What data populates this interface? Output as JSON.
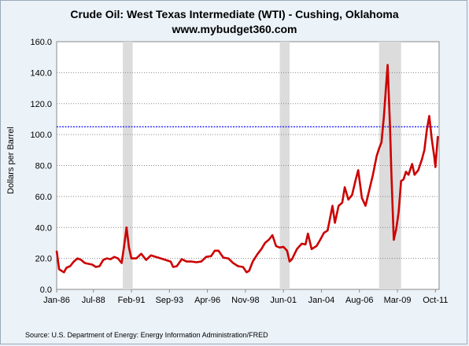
{
  "chart_data": {
    "type": "line",
    "title": "Crude Oil: West Texas Intermediate (WTI) - Cushing, Oklahoma",
    "subtitle": "www.mybudget360.com",
    "ylabel": "Dollars per Barrel",
    "xlabel": "",
    "source": "Source: U.S. Department of Energy: Energy Information Administration/FRED",
    "ylim": [
      0,
      160
    ],
    "yticks": [
      "0.0",
      "20.0",
      "40.0",
      "60.0",
      "80.0",
      "100.0",
      "120.0",
      "140.0",
      "160.0"
    ],
    "ytick_values": [
      0,
      20,
      40,
      60,
      80,
      100,
      120,
      140,
      160
    ],
    "x_range": [
      "1986-01",
      "2011-12"
    ],
    "xticks": [
      {
        "label": "Jan-86",
        "date": "1986-01"
      },
      {
        "label": "Jul-88",
        "date": "1988-07"
      },
      {
        "label": "Feb-91",
        "date": "1991-02"
      },
      {
        "label": "Sep-93",
        "date": "1993-09"
      },
      {
        "label": "Apr-96",
        "date": "1996-04"
      },
      {
        "label": "Nov-98",
        "date": "1998-11"
      },
      {
        "label": "Jun-01",
        "date": "2001-06"
      },
      {
        "label": "Jan-04",
        "date": "2004-01"
      },
      {
        "label": "Aug-06",
        "date": "2006-08"
      },
      {
        "label": "Mar-09",
        "date": "2009-03"
      },
      {
        "label": "Oct-11",
        "date": "2011-10"
      }
    ],
    "grid": true,
    "recessions": [
      {
        "start": "1990-07",
        "end": "1991-03"
      },
      {
        "start": "2001-03",
        "end": "2001-11"
      },
      {
        "start": "2007-12",
        "end": "2009-06"
      }
    ],
    "reference_line": {
      "value": 105,
      "color": "#3333ff",
      "style": "dotted"
    },
    "series": [
      {
        "color": "#cc0000",
        "points": [
          [
            "1986-01",
            25.0
          ],
          [
            "1986-03",
            13.0
          ],
          [
            "1986-05",
            12.0
          ],
          [
            "1986-07",
            11.0
          ],
          [
            "1986-09",
            14.0
          ],
          [
            "1986-12",
            15.0
          ],
          [
            "1987-03",
            18.0
          ],
          [
            "1987-06",
            20.0
          ],
          [
            "1987-09",
            19.0
          ],
          [
            "1987-12",
            17.0
          ],
          [
            "1988-03",
            16.5
          ],
          [
            "1988-06",
            16.0
          ],
          [
            "1988-09",
            14.5
          ],
          [
            "1988-12",
            15.0
          ],
          [
            "1989-03",
            19.0
          ],
          [
            "1989-06",
            20.0
          ],
          [
            "1989-09",
            19.5
          ],
          [
            "1989-12",
            21.0
          ],
          [
            "1990-03",
            20.0
          ],
          [
            "1990-06",
            17.0
          ],
          [
            "1990-08",
            28.0
          ],
          [
            "1990-10",
            40.0
          ],
          [
            "1990-12",
            27.0
          ],
          [
            "1991-02",
            20.0
          ],
          [
            "1991-06",
            20.0
          ],
          [
            "1991-10",
            23.0
          ],
          [
            "1992-02",
            19.0
          ],
          [
            "1992-06",
            22.0
          ],
          [
            "1992-10",
            21.0
          ],
          [
            "1993-02",
            20.0
          ],
          [
            "1993-06",
            19.0
          ],
          [
            "1993-10",
            18.0
          ],
          [
            "1993-12",
            14.5
          ],
          [
            "1994-03",
            15.0
          ],
          [
            "1994-07",
            19.5
          ],
          [
            "1994-11",
            18.0
          ],
          [
            "1995-03",
            18.0
          ],
          [
            "1995-07",
            17.5
          ],
          [
            "1995-11",
            18.0
          ],
          [
            "1996-03",
            21.0
          ],
          [
            "1996-07",
            21.5
          ],
          [
            "1996-10",
            25.0
          ],
          [
            "1997-01",
            25.0
          ],
          [
            "1997-05",
            20.5
          ],
          [
            "1997-09",
            20.0
          ],
          [
            "1998-01",
            17.0
          ],
          [
            "1998-05",
            15.0
          ],
          [
            "1998-09",
            14.5
          ],
          [
            "1998-12",
            11.0
          ],
          [
            "1999-02",
            12.0
          ],
          [
            "1999-05",
            18.0
          ],
          [
            "1999-09",
            23.0
          ],
          [
            "1999-12",
            26.0
          ],
          [
            "2000-03",
            30.0
          ],
          [
            "2000-06",
            32.0
          ],
          [
            "2000-09",
            35.0
          ],
          [
            "2000-12",
            28.0
          ],
          [
            "2001-03",
            27.0
          ],
          [
            "2001-06",
            27.5
          ],
          [
            "2001-09",
            25.0
          ],
          [
            "2001-11",
            18.0
          ],
          [
            "2002-01",
            19.5
          ],
          [
            "2002-05",
            26.0
          ],
          [
            "2002-09",
            29.5
          ],
          [
            "2002-12",
            29.0
          ],
          [
            "2003-02",
            36.0
          ],
          [
            "2003-05",
            26.0
          ],
          [
            "2003-09",
            28.0
          ],
          [
            "2003-12",
            32.0
          ],
          [
            "2004-03",
            36.5
          ],
          [
            "2004-06",
            38.0
          ],
          [
            "2004-10",
            54.0
          ],
          [
            "2004-12",
            43.0
          ],
          [
            "2005-03",
            54.0
          ],
          [
            "2005-06",
            56.0
          ],
          [
            "2005-08",
            66.0
          ],
          [
            "2005-11",
            58.0
          ],
          [
            "2006-02",
            61.0
          ],
          [
            "2006-05",
            71.0
          ],
          [
            "2006-07",
            77.0
          ],
          [
            "2006-10",
            59.0
          ],
          [
            "2007-01",
            54.0
          ],
          [
            "2007-04",
            64.0
          ],
          [
            "2007-07",
            74.0
          ],
          [
            "2007-10",
            86.0
          ],
          [
            "2007-12",
            91.0
          ],
          [
            "2008-02",
            95.0
          ],
          [
            "2008-04",
            112.0
          ],
          [
            "2008-06",
            134.0
          ],
          [
            "2008-07",
            145.0
          ],
          [
            "2008-09",
            104.0
          ],
          [
            "2008-10",
            76.0
          ],
          [
            "2008-12",
            32.0
          ],
          [
            "2009-02",
            39.0
          ],
          [
            "2009-04",
            50.0
          ],
          [
            "2009-06",
            70.0
          ],
          [
            "2009-08",
            71.0
          ],
          [
            "2009-10",
            76.0
          ],
          [
            "2009-12",
            74.0
          ],
          [
            "2010-03",
            81.0
          ],
          [
            "2010-05",
            74.0
          ],
          [
            "2010-08",
            77.0
          ],
          [
            "2010-11",
            84.0
          ],
          [
            "2011-01",
            90.0
          ],
          [
            "2011-03",
            103.0
          ],
          [
            "2011-05",
            112.0
          ],
          [
            "2011-07",
            97.0
          ],
          [
            "2011-09",
            86.0
          ],
          [
            "2011-10",
            79.0
          ],
          [
            "2011-12",
            99.0
          ]
        ]
      }
    ]
  }
}
